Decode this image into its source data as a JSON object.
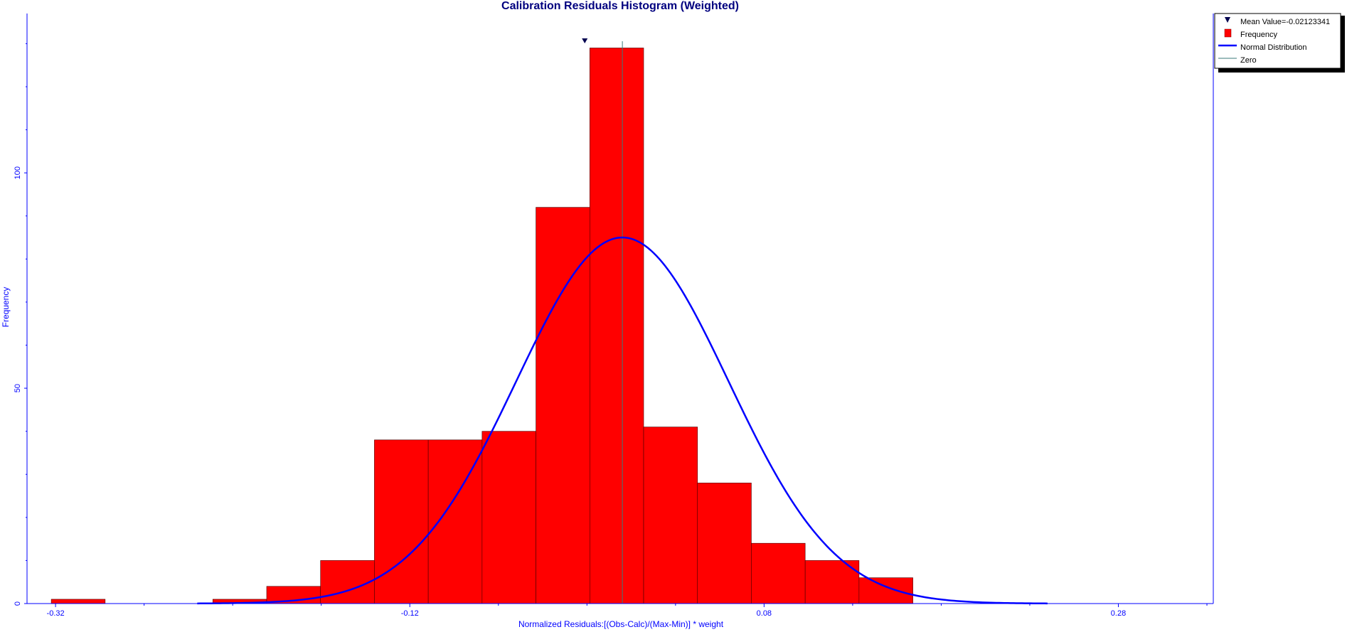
{
  "chart_data": {
    "type": "bar",
    "title": "Calibration Residuals Histogram (Weighted)",
    "xlabel": "Normalized Residuals:[(Obs-Calc)/(Max-Min)] * weight",
    "ylabel": "Frequency",
    "xlim": [
      -0.3361,
      0.3336
    ],
    "ylim": [
      0,
      137
    ],
    "x_ticks": [
      -0.32,
      -0.12,
      0.08,
      0.28
    ],
    "x_tick_labels": [
      "-0.32",
      "-0.12",
      "0.08",
      "0.28"
    ],
    "x_minor_ticks": [
      -0.27,
      -0.22,
      -0.17,
      -0.07,
      -0.02,
      0.03,
      0.13,
      0.18,
      0.23,
      0.33
    ],
    "y_ticks": [
      0,
      50,
      100
    ],
    "y_tick_labels": [
      "0",
      "50",
      "100"
    ],
    "y_minor_ticks": [
      10,
      20,
      30,
      40,
      60,
      70,
      80,
      90,
      110,
      120,
      130
    ],
    "bin_width": 0.0304,
    "bins": [
      {
        "x0": -0.3224,
        "x1": -0.292,
        "count": 1
      },
      {
        "x0": -0.2312,
        "x1": -0.2008,
        "count": 1
      },
      {
        "x0": -0.2008,
        "x1": -0.1704,
        "count": 4
      },
      {
        "x0": -0.1704,
        "x1": -0.14,
        "count": 10
      },
      {
        "x0": -0.14,
        "x1": -0.1096,
        "count": 38
      },
      {
        "x0": -0.1096,
        "x1": -0.0792,
        "count": 38
      },
      {
        "x0": -0.0792,
        "x1": -0.0488,
        "count": 40
      },
      {
        "x0": -0.0488,
        "x1": -0.0184,
        "count": 92
      },
      {
        "x0": -0.0184,
        "x1": 0.012,
        "count": 129
      },
      {
        "x0": 0.012,
        "x1": 0.0424,
        "count": 41
      },
      {
        "x0": 0.0424,
        "x1": 0.0728,
        "count": 28
      },
      {
        "x0": 0.0728,
        "x1": 0.1032,
        "count": 14
      },
      {
        "x0": 0.1032,
        "x1": 0.1336,
        "count": 10
      },
      {
        "x0": 0.1336,
        "x1": 0.164,
        "count": 6
      }
    ],
    "mean": -0.02123341,
    "normal_distribution": {
      "mean": 0.0,
      "std": 0.06,
      "peak": 85,
      "x_range": [
        -0.24,
        0.24
      ]
    },
    "zero_line_x": 0.0,
    "grid": false,
    "legend_position": "top-right",
    "legend": [
      {
        "symbol": "triangle-down-icon",
        "label": "Mean Value=-0.02123341"
      },
      {
        "symbol": "red-square-icon",
        "label": "Frequency"
      },
      {
        "symbol": "blue-line-icon",
        "label": "Normal Distribution"
      },
      {
        "symbol": "teal-line-icon",
        "label": "Zero"
      }
    ],
    "colors": {
      "bars": "#ff0000",
      "bar_edge": "#4a0000",
      "normal_curve": "#0000ff",
      "zero_line": "#3a7a7a",
      "axis": "#0000ff",
      "title": "#00007f",
      "mean_marker": "#00004f"
    }
  }
}
